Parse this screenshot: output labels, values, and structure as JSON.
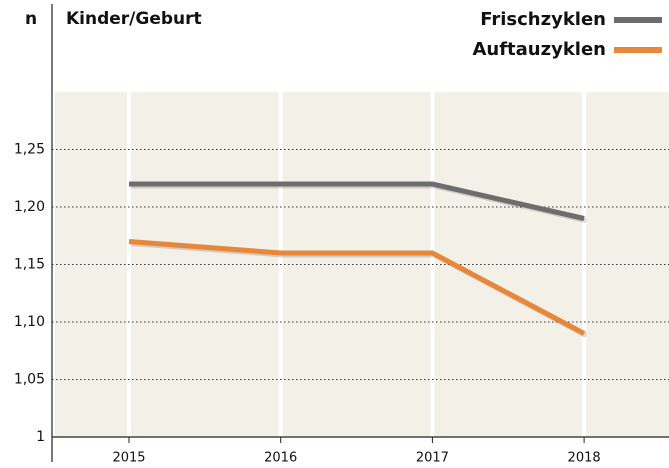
{
  "chart_data": {
    "type": "line",
    "y_label": "n",
    "title": "Kinder/Geburt",
    "categories": [
      "2015",
      "2016",
      "2017",
      "2018"
    ],
    "series": [
      {
        "name": "Frischzyklen",
        "color": "#6d6d6d",
        "values": [
          1.22,
          1.22,
          1.22,
          1.19
        ]
      },
      {
        "name": "Auftauzyklen",
        "color": "#e8873a",
        "values": [
          1.17,
          1.16,
          1.16,
          1.09
        ]
      }
    ],
    "ylim": [
      1,
      1.3
    ],
    "yticks": [
      1,
      {
        "value": 1.05,
        "label": "1,05"
      },
      {
        "value": 1.1,
        "label": "1,10"
      },
      {
        "value": 1.15,
        "label": "1,15"
      },
      {
        "value": 1.2,
        "label": "1,20"
      },
      {
        "value": 1.25,
        "label": "1,25"
      }
    ],
    "grid": true
  }
}
